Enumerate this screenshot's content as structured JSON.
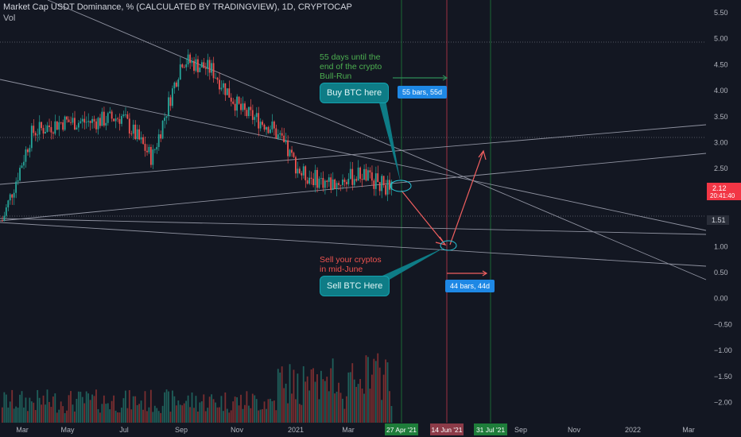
{
  "header": {
    "title": "Market Cap USDT Dominance, % (CALCULATED BY TRADINGVIEW), 1D, CRYPTOCAP",
    "volume_label": "Vol"
  },
  "price_axis": {
    "ticks": [
      "5.50",
      "5.00",
      "4.50",
      "4.00",
      "3.50",
      "3.00",
      "2.50",
      "2.00",
      "1.50",
      "1.00",
      "0.50",
      "0.00",
      "−0.50",
      "−1.00",
      "−1.50",
      "−2.00"
    ]
  },
  "time_axis": {
    "ticks": [
      "Mar",
      "May",
      "Jul",
      "Sep",
      "Nov",
      "2021",
      "Mar",
      "Sep",
      "Nov",
      "2022",
      "Mar"
    ],
    "highlight_dates": [
      {
        "label": "27 Apr '21",
        "color": "#1e7d3a"
      },
      {
        "label": "14 Jun '21",
        "color": "#8c3b48"
      },
      {
        "label": "31 Jul '21",
        "color": "#1e7d3a"
      }
    ]
  },
  "price_labels": {
    "last_price": "2.12",
    "countdown": "20:41:40",
    "level_mark": "1.51"
  },
  "annotations": {
    "bullrun_text": [
      "55 days until the",
      "end of the crypto",
      "Bull-Run"
    ],
    "sell_text": [
      "Sell your cryptos",
      "in mid-June"
    ],
    "buy_callout": "Buy BTC here",
    "sell_callout": "Sell BTC Here",
    "range_55": "55 bars, 55d",
    "range_44": "44 bars, 44d"
  },
  "colors": {
    "background": "#131722",
    "up": "#26a69a",
    "down": "#ef5350",
    "buy_text": "#4caf50",
    "sell_text": "#ef5350",
    "callout": "#0e7c86",
    "range_badge": "#1e88e5",
    "price_badge": "#f23645"
  },
  "chart_data": {
    "type": "candlestick",
    "y_scale": "linear",
    "ylim": [
      -2.2,
      5.6
    ],
    "series": [
      {
        "name": "",
        "note": "approximate daily closes read by month",
        "points": [
          {
            "x": "2020-03",
            "y": 1.5
          },
          {
            "x": "2020-04",
            "y": 3.2
          },
          {
            "x": "2020-05",
            "y": 3.4
          },
          {
            "x": "2020-06",
            "y": 3.4
          },
          {
            "x": "2020-07",
            "y": 3.5
          },
          {
            "x": "2020-08",
            "y": 2.7
          },
          {
            "x": "2020-09",
            "y": 4.6
          },
          {
            "x": "2020-10",
            "y": 4.4
          },
          {
            "x": "2020-11",
            "y": 3.6
          },
          {
            "x": "2020-12",
            "y": 3.3
          },
          {
            "x": "2021-01",
            "y": 2.4
          },
          {
            "x": "2021-02",
            "y": 2.2
          },
          {
            "x": "2021-03",
            "y": 2.4
          },
          {
            "x": "2021-04",
            "y": 2.1
          }
        ]
      }
    ]
  }
}
